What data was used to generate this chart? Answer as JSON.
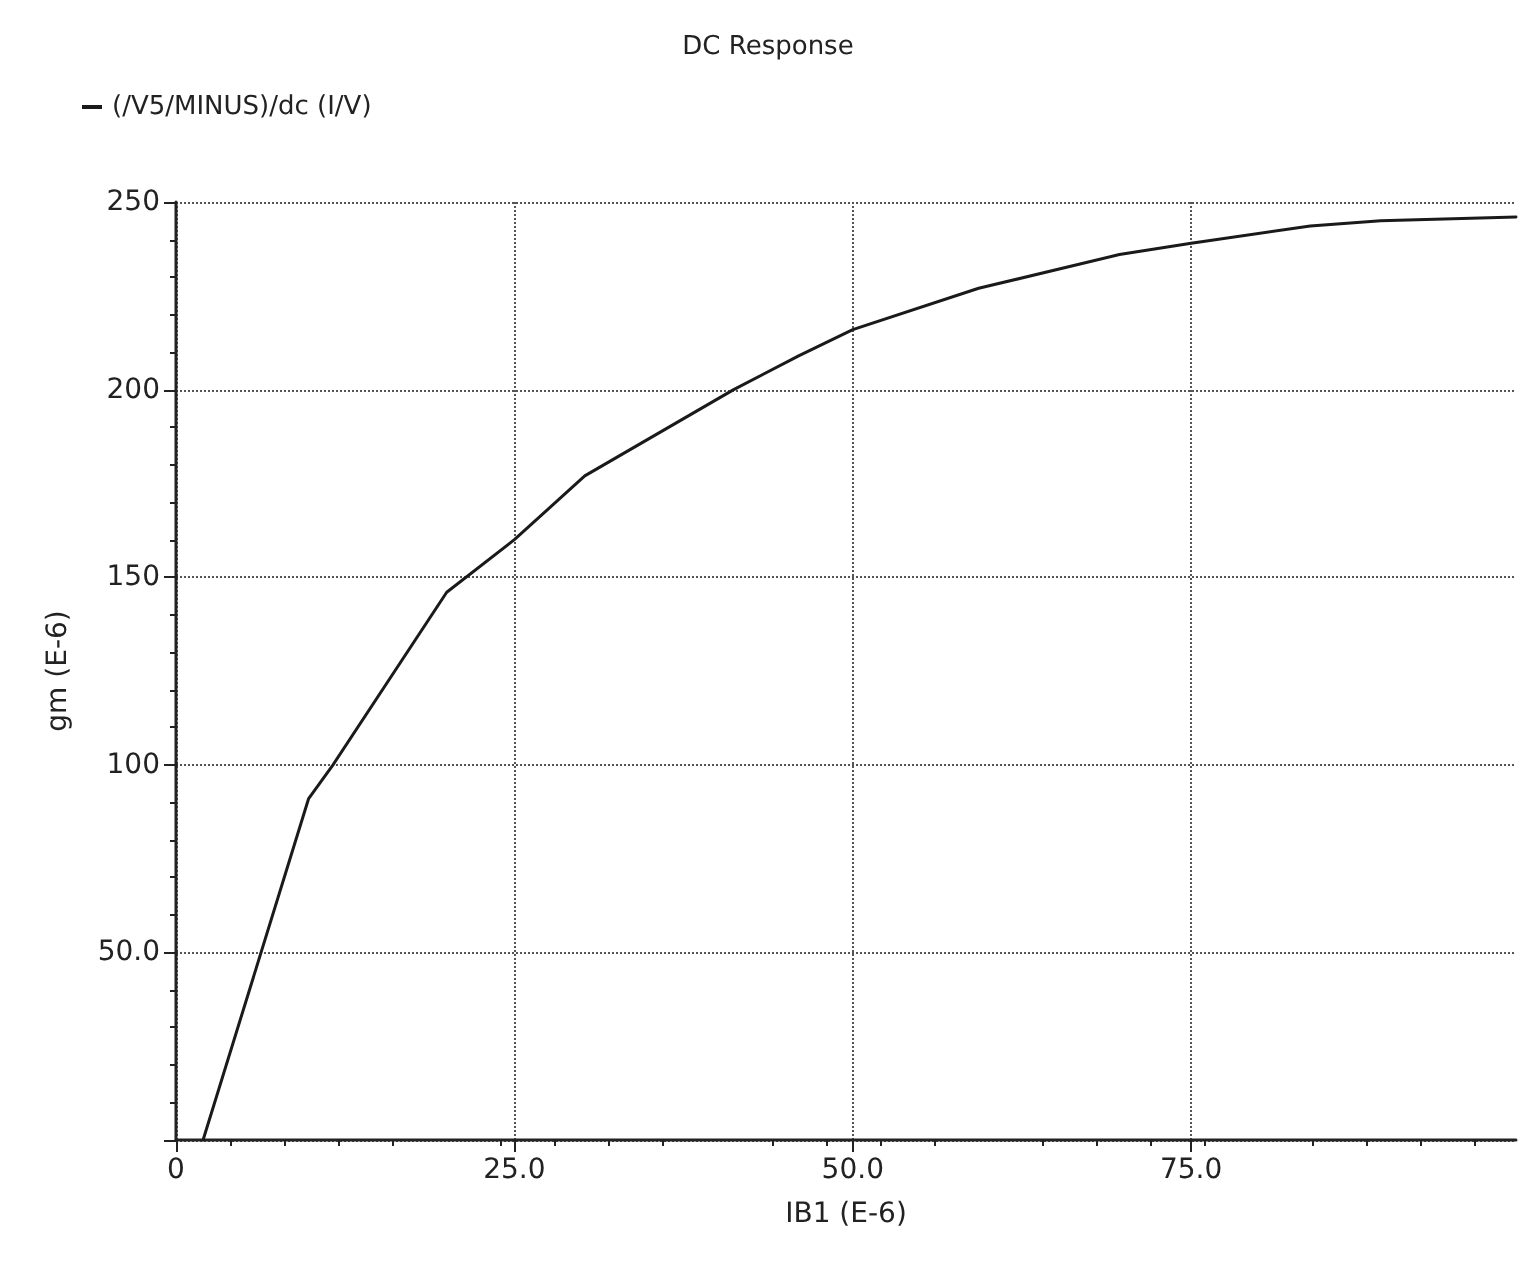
{
  "chart_data": {
    "type": "line",
    "title": "DC Response",
    "xlabel": "IB1 (E-6)",
    "ylabel": "gm (E-6)",
    "x": [
      2,
      9.8,
      11.6,
      20,
      25,
      30.2,
      41.2,
      46,
      50,
      59.3,
      69.7,
      75,
      83.8,
      89,
      99
    ],
    "series": [
      {
        "name": "(/V5/MINUS)/dc (I/V)",
        "color": "#1a1a1a",
        "values": [
          0,
          91,
          100,
          146,
          160,
          177,
          200,
          209,
          216,
          227,
          236,
          239,
          243.6,
          245,
          246
        ]
      }
    ],
    "xlim": [
      0,
      99
    ],
    "xticks": [
      0,
      {
        "value": 25,
        "label": "25.0"
      },
      {
        "value": 50,
        "label": "50.0"
      },
      {
        "value": 75,
        "label": "75.0"
      }
    ],
    "ylim": [
      0,
      250
    ],
    "yticks": [
      {
        "value": 0,
        "label": null
      },
      {
        "value": 50,
        "label": "50.0"
      },
      100,
      150,
      200,
      250
    ],
    "grid": true,
    "legend": "top left",
    "marker": "none",
    "line_style": "solid"
  }
}
